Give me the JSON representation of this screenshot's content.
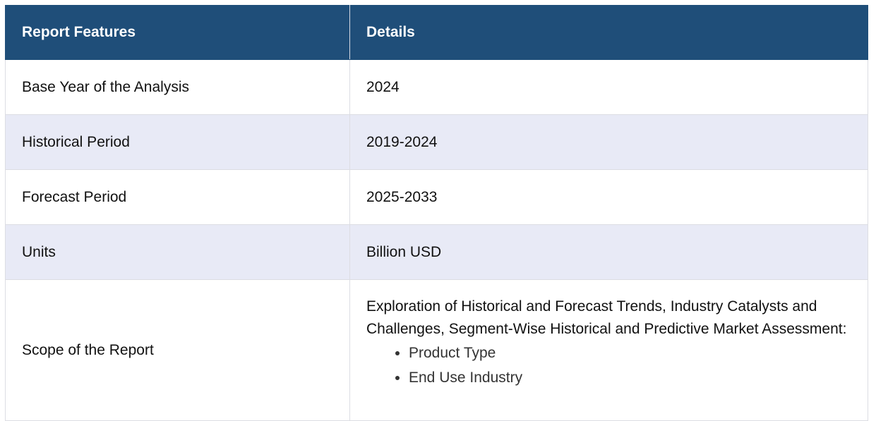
{
  "header": {
    "col1": "Report Features",
    "col2": "Details"
  },
  "rows": [
    {
      "feature": "Base Year of the Analysis",
      "detail": "2024"
    },
    {
      "feature": "Historical Period",
      "detail": "2019-2024"
    },
    {
      "feature": "Forecast Period",
      "detail": "2025-2033"
    },
    {
      "feature": "Units",
      "detail": "Billion USD"
    }
  ],
  "scope": {
    "feature": "Scope of the Report",
    "intro": "Exploration of Historical and Forecast Trends, Industry Catalysts and Challenges, Segment-Wise Historical and Predictive Market Assessment:",
    "items": [
      "Product Type",
      "End Use Industry"
    ]
  },
  "colors": {
    "header_bg": "#1f4e79",
    "alt_row_bg": "#e8eaf6",
    "border": "#dcdde3"
  }
}
